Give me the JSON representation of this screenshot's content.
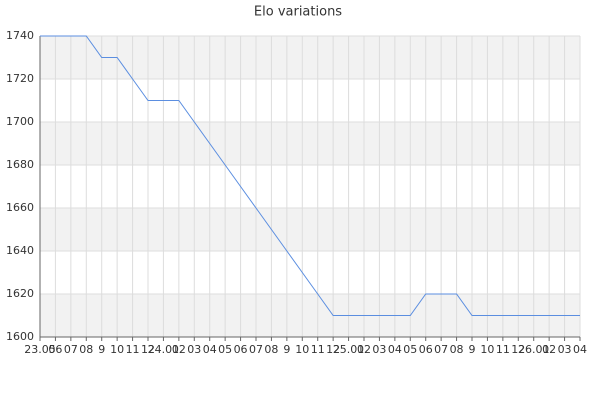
{
  "chart_data": {
    "type": "line",
    "title": "Elo variations",
    "categories": [
      "23.05",
      "06",
      "07",
      "08",
      "9",
      "10",
      "11",
      "12",
      "24.01",
      "02",
      "03",
      "04",
      "05",
      "06",
      "07",
      "08",
      "9",
      "10",
      "11",
      "12",
      "25.01",
      "02",
      "03",
      "04",
      "05",
      "06",
      "07",
      "08",
      "9",
      "10",
      "11",
      "12",
      "26.01",
      "02",
      "03",
      "04"
    ],
    "series": [
      {
        "name": "Elo",
        "color": "#5b8ee0",
        "values": [
          1740,
          1740,
          1740,
          1740,
          1730,
          1730,
          1720,
          1710,
          1710,
          1710,
          1700,
          1690,
          1680,
          1670,
          1660,
          1650,
          1640,
          1630,
          1620,
          1610,
          1610,
          1610,
          1610,
          1610,
          1610,
          1620,
          1620,
          1620,
          1610,
          1610,
          1610,
          1610,
          1610,
          1610,
          1610,
          1610
        ]
      }
    ],
    "ylim": [
      1600,
      1740
    ],
    "yticks": [
      1600,
      1620,
      1640,
      1660,
      1680,
      1700,
      1720,
      1740
    ],
    "grid": true,
    "band_color": "#f2f2f2"
  }
}
